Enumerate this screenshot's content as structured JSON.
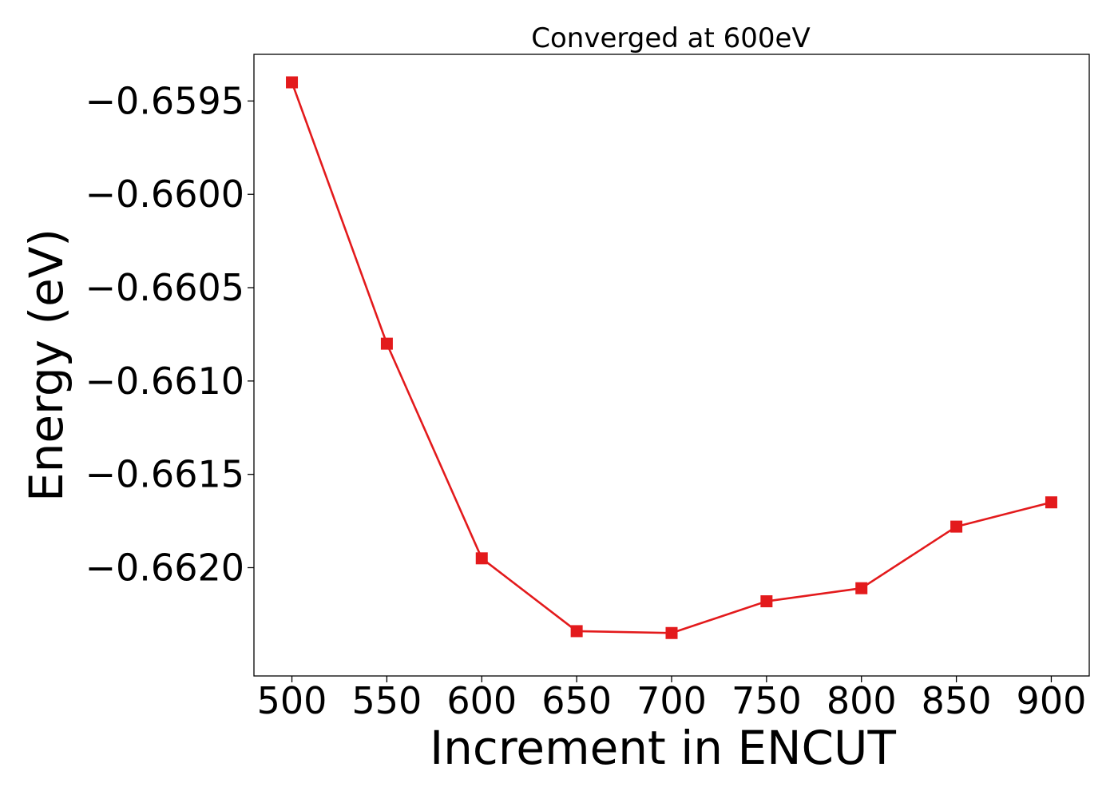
{
  "chart_data": {
    "type": "line",
    "title": "Converged at 600eV",
    "xlabel": "Increment in ENCUT",
    "ylabel": "Energy (eV)",
    "x": [
      500,
      550,
      600,
      650,
      700,
      750,
      800,
      850,
      900
    ],
    "series": [
      {
        "values": [
          -0.6594,
          -0.6608,
          -0.66195,
          -0.66234,
          -0.66235,
          -0.66218,
          -0.66211,
          -0.66178,
          -0.66165
        ],
        "color": "#e31a1c",
        "marker": "square"
      }
    ],
    "xticks": [
      500,
      550,
      600,
      650,
      700,
      750,
      800,
      850,
      900
    ],
    "yticks": [
      -0.6595,
      -0.66,
      -0.6605,
      -0.661,
      -0.6615,
      -0.662
    ],
    "ytick_labels": [
      "−0.6595",
      "−0.6600",
      "−0.6605",
      "−0.6610",
      "−0.6615",
      "−0.6620"
    ],
    "xlim": [
      480,
      920
    ],
    "ylim": [
      -0.66258,
      -0.65925
    ],
    "grid": false,
    "legend": "none"
  }
}
